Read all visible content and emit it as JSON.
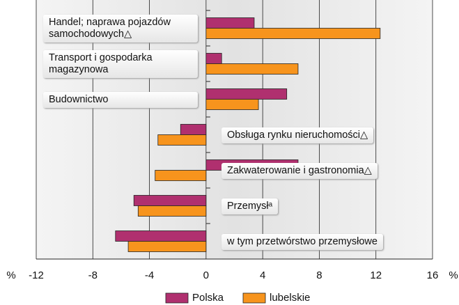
{
  "chart_data": {
    "type": "hbar",
    "categories": [
      "Handel; naprawa pojazdów samochodowych△",
      "Transport i gospodarka magazynowa",
      "Budownictwo",
      "Obsługa rynku nieruchomości△",
      "Zakwaterowanie i gastronomia△",
      "Przemysłᵃ",
      "w tym przetwórstwo przemysłowe"
    ],
    "series": [
      {
        "name": "Polska",
        "color": "#b0306f",
        "values": [
          3.4,
          1.1,
          5.7,
          -1.8,
          6.5,
          -5.1,
          -6.4
        ]
      },
      {
        "name": "lubelskie",
        "color": "#f7941d",
        "values": [
          12.3,
          6.5,
          3.7,
          -3.4,
          -3.6,
          -4.8,
          -5.5
        ]
      }
    ],
    "xlim": [
      -12,
      16
    ],
    "xticks": [
      -12,
      -8,
      -4,
      0,
      4,
      8,
      12,
      16
    ],
    "grid": true,
    "x_axis_labels": [
      "%",
      "%"
    ]
  }
}
